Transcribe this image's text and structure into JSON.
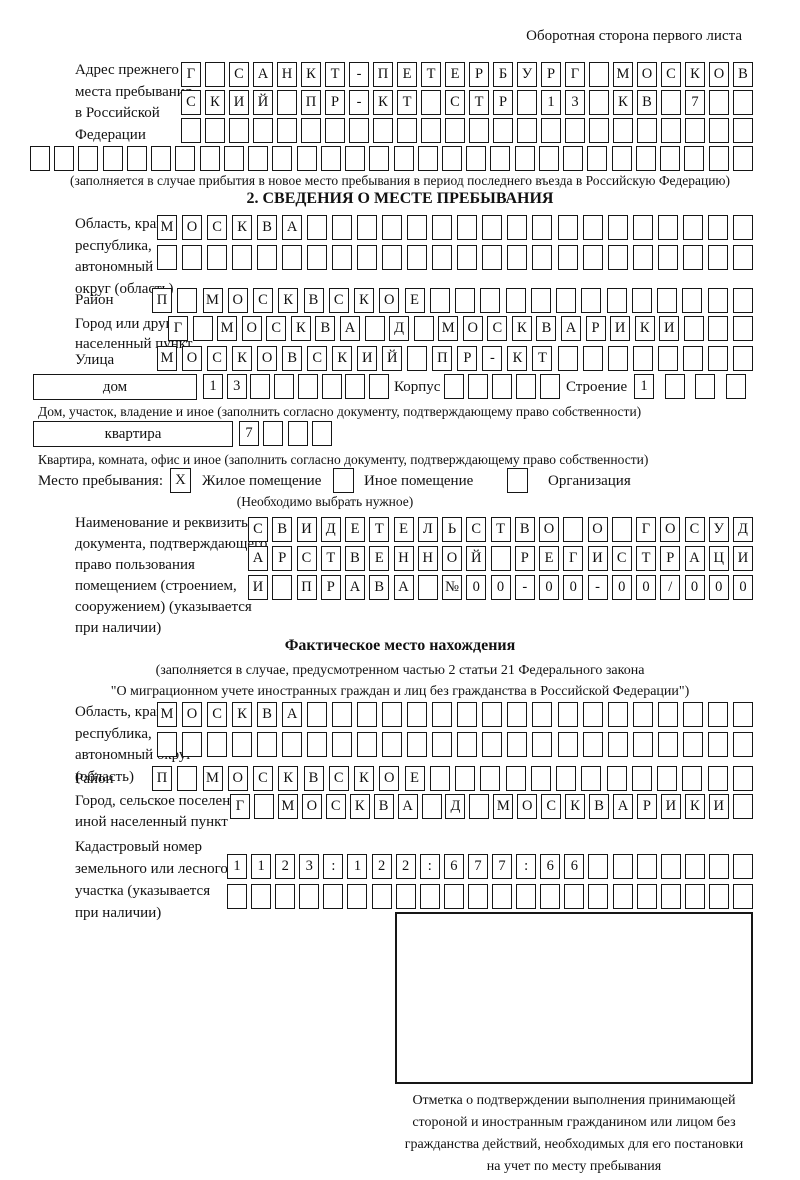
{
  "header": {
    "title": "Оборотная сторона первого листа"
  },
  "prev_address": {
    "label_lines": [
      "Адрес прежнего",
      "места пребывания",
      "в Российской",
      "Федерации"
    ],
    "rows": [
      {
        "value": "Г САНКТ-ПЕТЕРБУРГ МОСКОВ",
        "count": 24
      },
      {
        "value": "СКИЙ ПР-КТ СТР 13 КВ 7",
        "count": 24
      },
      {
        "value": "",
        "count": 24
      },
      {
        "value": "",
        "count": 30
      }
    ],
    "note": "(заполняется в случае прибытия в новое место пребывания в период последнего въезда в Российскую Федерацию)"
  },
  "section2": {
    "title": "2. СВЕДЕНИЯ О МЕСТЕ ПРЕБЫВАНИЯ",
    "region": {
      "label_lines": [
        "Область, край,",
        "республика,",
        "автономный",
        "округ (область)"
      ],
      "rows": [
        {
          "value": "МОСКВА",
          "count": 24
        },
        {
          "value": "",
          "count": 24
        }
      ]
    },
    "district": {
      "label": "Район",
      "row": {
        "value": "П МОСКВСКОЕ",
        "count": 24
      }
    },
    "city": {
      "label_lines": [
        "Город или другой",
        "населенный пункт"
      ],
      "row": {
        "value": "Г МОСКВА Д МОСКВАРИКИ",
        "count": 24
      }
    },
    "street": {
      "label": "Улица",
      "row": {
        "value": "МОСКОВСКИЙ ПР-КТ",
        "count": 24
      }
    },
    "house_row": {
      "house_label": "дом",
      "house_value": {
        "value": "13",
        "count": 8
      },
      "korpus_label": "Корпус",
      "korpus_value": {
        "value": "",
        "count": 5
      },
      "stroenie_label": "Строение",
      "stroenie_value": {
        "value": "1",
        "count": 4
      }
    },
    "house_note": "Дом, участок, владение и иное (заполнить согласно документу, подтверждающему право собственности)",
    "apartment_row": {
      "label": "квартира",
      "value": {
        "value": "7",
        "count": 4
      }
    },
    "apartment_note": "Квартира, комната, офис и иное (заполнить согласно документу, подтверждающему право собственности)",
    "stay_type": {
      "label": "Место пребывания:",
      "options": [
        {
          "label": "Жилое помещение",
          "checked": "X"
        },
        {
          "label": "Иное помещение",
          "checked": ""
        },
        {
          "label": "Организация",
          "checked": ""
        }
      ],
      "note": "(Необходимо выбрать нужное)"
    },
    "document": {
      "label_lines": [
        "Наименование и реквизиты",
        "документа, подтверждающего",
        "право пользования",
        "помещением (строением,",
        "сооружением) (указывается",
        "при наличии)"
      ],
      "rows": [
        {
          "value": "СВИДЕТЕЛЬСТВО О ГОСУД",
          "count": 21
        },
        {
          "value": "АРСТВЕННОЙ РЕГИСТРАЦИ",
          "count": 21
        },
        {
          "value": "И ПРАВА №00-00-00/000",
          "count": 21
        }
      ]
    }
  },
  "actual_location": {
    "title": "Фактическое место нахождения",
    "note_lines": [
      "(заполняется в случае, предусмотренном частью 2 статьи 21 Федерального закона",
      "\"О миграционном учете иностранных граждан и лиц без гражданства в Российской Федерации\")"
    ],
    "region": {
      "label_lines": [
        "Область, край,",
        "республика,",
        "автономный округ",
        "(область)"
      ],
      "rows": [
        {
          "value": "МОСКВА",
          "count": 24
        },
        {
          "value": "",
          "count": 24
        }
      ]
    },
    "district": {
      "label": "Район",
      "row": {
        "value": "П МОСКВСКОЕ",
        "count": 24
      }
    },
    "city": {
      "label_lines": [
        "Город, сельское поселение,",
        "иной населенный пункт"
      ],
      "row": {
        "value": "Г МОСКВА Д МОСКВАРИКИ",
        "count": 22
      }
    },
    "cadastral": {
      "label_lines": [
        "Кадастровый номер",
        "земельного или лесного",
        "участка (указывается",
        "при наличии)"
      ],
      "rows": [
        {
          "value": "1123:122:677:66",
          "count": 22
        },
        {
          "value": "",
          "count": 22
        }
      ]
    },
    "stamp_caption_lines": [
      "Отметка о подтверждении выполнения принимающей",
      "стороной и иностранным гражданином или лицом без",
      "гражданства действий, необходимых для его постановки",
      "на учет по месту пребывания"
    ]
  }
}
